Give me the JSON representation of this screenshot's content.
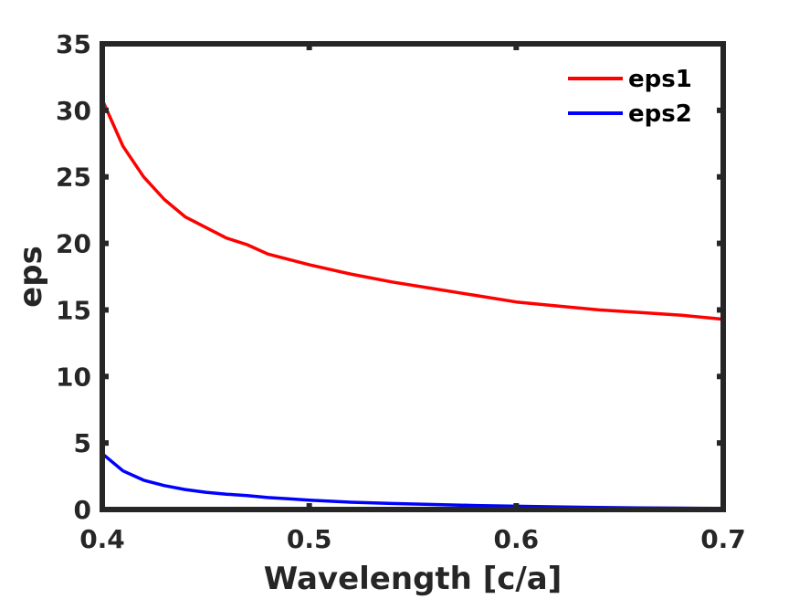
{
  "chart_data": {
    "type": "line",
    "title": "",
    "xlabel": "Wavelength [c/a]",
    "ylabel": "eps",
    "xlim": [
      0.4,
      0.7
    ],
    "ylim": [
      0,
      35
    ],
    "xticks": [
      0.4,
      0.5,
      0.6,
      0.7
    ],
    "xtick_labels": [
      "0.4",
      "0.5",
      "0.6",
      "0.7"
    ],
    "yticks": [
      0,
      5,
      10,
      15,
      20,
      25,
      30,
      35
    ],
    "ytick_labels": [
      "0",
      "5",
      "10",
      "15",
      "20",
      "25",
      "30",
      "35"
    ],
    "grid": false,
    "legend_position": "top-right",
    "x": [
      0.4,
      0.41,
      0.42,
      0.43,
      0.44,
      0.45,
      0.46,
      0.47,
      0.48,
      0.49,
      0.5,
      0.52,
      0.54,
      0.56,
      0.58,
      0.6,
      0.62,
      0.64,
      0.66,
      0.68,
      0.7
    ],
    "series": [
      {
        "name": "eps1",
        "color": "#ff0000",
        "values": [
          30.8,
          27.3,
          25.0,
          23.3,
          22.0,
          21.2,
          20.4,
          19.9,
          19.2,
          18.8,
          18.4,
          17.7,
          17.1,
          16.6,
          16.1,
          15.6,
          15.3,
          15.0,
          14.8,
          14.6,
          14.3
        ]
      },
      {
        "name": "eps2",
        "color": "#0000ff",
        "values": [
          4.2,
          2.9,
          2.2,
          1.8,
          1.5,
          1.3,
          1.15,
          1.05,
          0.9,
          0.8,
          0.7,
          0.55,
          0.45,
          0.38,
          0.3,
          0.25,
          0.2,
          0.15,
          0.12,
          0.1,
          0.08
        ]
      }
    ]
  }
}
